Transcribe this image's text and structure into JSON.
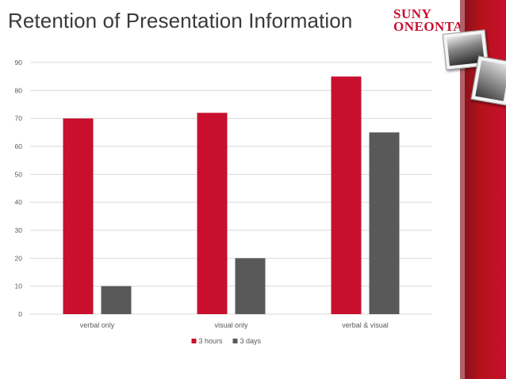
{
  "slide": {
    "title": "Retention of Presentation Information",
    "logo": {
      "line1": "SUNY",
      "line2": "ONEONTA"
    }
  },
  "colors": {
    "series_1": "#c8102e",
    "series_2": "#595959",
    "grid": "#d9d9d9",
    "text": "#595959"
  },
  "chart_data": {
    "type": "bar",
    "title": "",
    "xlabel": "",
    "ylabel": "",
    "categories": [
      "verbal only",
      "visual only",
      "verbal & visual"
    ],
    "series": [
      {
        "name": "3 hours",
        "values": [
          70,
          72,
          85
        ]
      },
      {
        "name": "3 days",
        "values": [
          10,
          20,
          65
        ]
      }
    ],
    "ylim": [
      0,
      90
    ],
    "yticks": [
      0,
      10,
      20,
      30,
      40,
      50,
      60,
      70,
      80,
      90
    ],
    "grid": true,
    "legend_position": "bottom"
  }
}
